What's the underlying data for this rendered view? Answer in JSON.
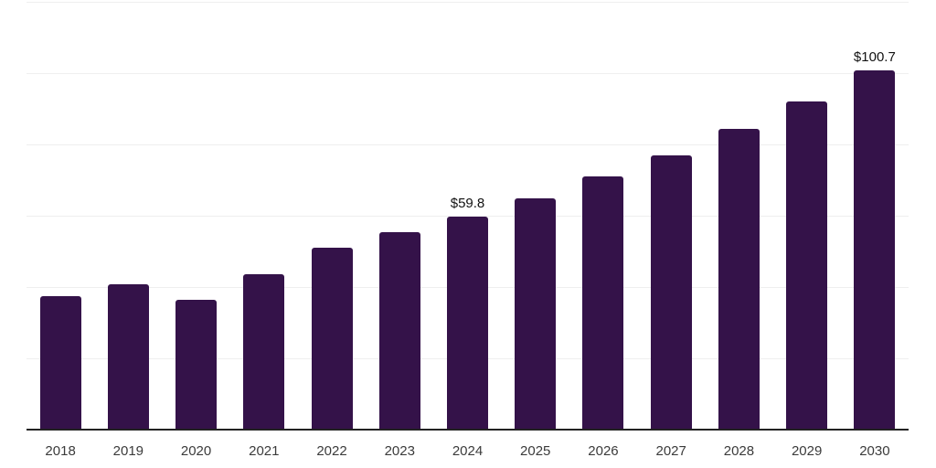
{
  "chart_data": {
    "type": "bar",
    "title": "",
    "xlabel": "",
    "ylabel": "",
    "categories": [
      "2018",
      "2019",
      "2020",
      "2021",
      "2022",
      "2023",
      "2024",
      "2025",
      "2026",
      "2027",
      "2028",
      "2029",
      "2030"
    ],
    "values": [
      37.5,
      40.7,
      36.3,
      43.7,
      50.9,
      55.3,
      59.8,
      64.9,
      70.9,
      77.0,
      84.3,
      92.0,
      100.7
    ],
    "point_labels": [
      null,
      null,
      null,
      null,
      null,
      null,
      "$59.8",
      null,
      null,
      null,
      null,
      null,
      "$100.7"
    ],
    "ylim": [
      0,
      120
    ],
    "grid": true,
    "grid_step": 20,
    "legend": false,
    "colors": {
      "bar": "#341249",
      "grid_line": "#efefef",
      "axis_line": "#222222",
      "category_label": "#3b3b3b",
      "value_label": "#121212",
      "background": "#ffffff"
    }
  }
}
